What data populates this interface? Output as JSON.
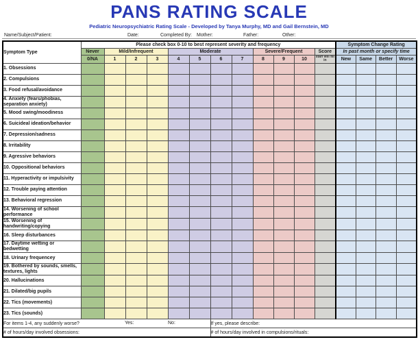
{
  "title": "PANS RATING SCALE",
  "subtitle": "Pediatric Neuropsychiatric Rating Scale - Developed by Tanya Murphy, MD and Gail Bernstein, MD",
  "info_fields": {
    "name": "Name/Subject/Patient:",
    "date": "Date:",
    "completed_by": "Completed By:",
    "mother": "Mother:",
    "father": "Father:",
    "other": "Other:"
  },
  "table": {
    "symptom_type_header": "Symptom Type",
    "check_instruction": "Please check box 0-10 to best represent severity and frequency",
    "change_rating_title": "Symptom Change Rating",
    "change_rating_subtitle": "In past month or specify time",
    "severity_bands": [
      {
        "label": "Never",
        "color": "#a8c58e",
        "cols": [
          "0/NA"
        ]
      },
      {
        "label": "Mild/Infrequent",
        "color": "#f9f2c7",
        "cols": [
          "1",
          "2",
          "3"
        ]
      },
      {
        "label": "Moderate",
        "color": "#cfcce4",
        "cols": [
          "4",
          "5",
          "6",
          "7"
        ]
      },
      {
        "label": "Severe/Frequent",
        "color": "#eccac7",
        "cols": [
          "8",
          "9",
          "10"
        ]
      }
    ],
    "score_header": "Score",
    "score_note": "staff will fill in",
    "change_cols": [
      "New",
      "Same",
      "Better",
      "Worse"
    ],
    "symptoms": [
      "1. Obsessions",
      "2. Compulsions",
      "3. Food refusal/avoidance",
      "4. Anxiety (fears/phobias, separation anxiety)",
      "5. Mood swing/moodiness",
      "6. Suicideal ideation/behavior",
      "7. Depression/sadness",
      "8. Irritability",
      "9. Agressive behaviors",
      "10. Oppositional behaviors",
      "11. Hyperactivity or impulsivity",
      "12. Trouble paying attention",
      "13. Behavioral regression",
      "14. Worsening of school performance",
      "15. Worsening of handwriting/copying",
      "16. Sleep disturbances",
      "17. Daytime wetting or bedwetting",
      "18. Urinary frequencey",
      "19. Bothered by sounds, smells, textures, lights",
      "20. Hallucinations",
      "21. Dilated/big pupils",
      "22. Tics (movements)",
      "23. Tics (sounds)"
    ]
  },
  "footer": {
    "sudden_question": "For items 1-4, any suddenly worse?",
    "yes_label": "Yes:",
    "no_label": "No:",
    "describe_label": "If yes, please describe:",
    "hours_obsessions": "# of hours/day involved obsessions:",
    "hours_compulsions": "# of hours/day involved in compulsions/rituals:"
  },
  "colors": {
    "title_blue": "#2839b5",
    "never_green": "#a8c58e",
    "mild_yellow": "#f9f2c7",
    "moderate_lavender": "#cfcce4",
    "severe_pink": "#eccac7",
    "score_gray": "#d6d6d2",
    "change_blue": "#d9e5f3",
    "change_header_blue": "#c9d9ea"
  }
}
